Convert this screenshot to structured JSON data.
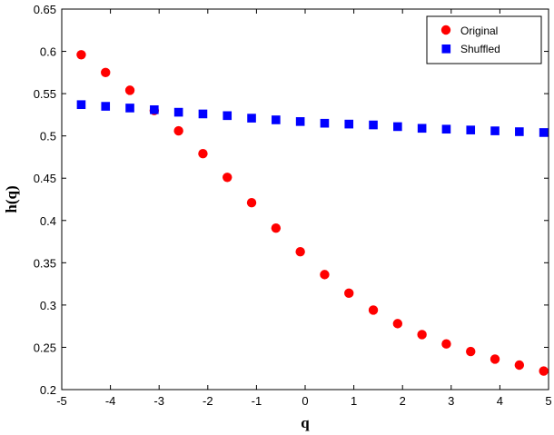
{
  "chart_data": {
    "type": "scatter",
    "title": "",
    "xlabel": "q",
    "ylabel": "h(q)",
    "xlim": [
      -5,
      5
    ],
    "ylim": [
      0.2,
      0.65
    ],
    "xticks": [
      -5,
      -4,
      -3,
      -2,
      -1,
      0,
      1,
      2,
      3,
      4,
      5
    ],
    "yticks": [
      0.2,
      0.25,
      0.3,
      0.35,
      0.4,
      0.45,
      0.5,
      0.55,
      0.6,
      0.65
    ],
    "xtick_labels": [
      "-5",
      "-4",
      "-3",
      "-2",
      "-1",
      "0",
      "1",
      "2",
      "3",
      "4",
      "5"
    ],
    "ytick_labels": [
      "0.2",
      "0.25",
      "0.3",
      "0.35",
      "0.4",
      "0.45",
      "0.5",
      "0.55",
      "0.6",
      "0.65"
    ],
    "grid": false,
    "legend_position": "top-right",
    "series": [
      {
        "name": "Original",
        "marker": "circle",
        "color": "#ff0000",
        "x": [
          -4.6,
          -4.1,
          -3.6,
          -3.1,
          -2.6,
          -2.1,
          -1.6,
          -1.1,
          -0.6,
          -0.1,
          0.4,
          0.9,
          1.4,
          1.9,
          2.4,
          2.9,
          3.4,
          3.9,
          4.4,
          4.9
        ],
        "y": [
          0.596,
          0.575,
          0.554,
          0.53,
          0.506,
          0.479,
          0.451,
          0.421,
          0.391,
          0.363,
          0.336,
          0.314,
          0.294,
          0.278,
          0.265,
          0.254,
          0.245,
          0.236,
          0.229,
          0.222
        ]
      },
      {
        "name": "Shuffled",
        "marker": "square",
        "color": "#0000ff",
        "x": [
          -4.6,
          -4.1,
          -3.6,
          -3.1,
          -2.6,
          -2.1,
          -1.6,
          -1.1,
          -0.6,
          -0.1,
          0.4,
          0.9,
          1.4,
          1.9,
          2.4,
          2.9,
          3.4,
          3.9,
          4.4,
          4.9
        ],
        "y": [
          0.537,
          0.535,
          0.533,
          0.531,
          0.528,
          0.526,
          0.524,
          0.521,
          0.519,
          0.517,
          0.515,
          0.514,
          0.513,
          0.511,
          0.509,
          0.508,
          0.507,
          0.506,
          0.505,
          0.504
        ]
      }
    ]
  }
}
